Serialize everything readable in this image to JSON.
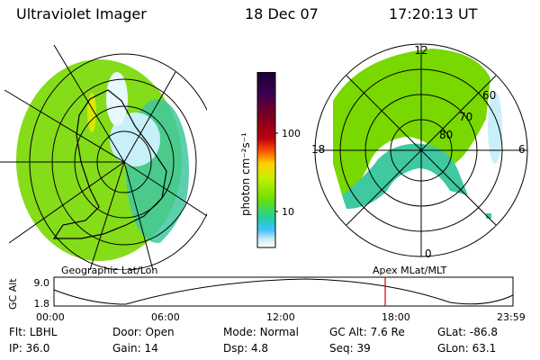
{
  "header": {
    "instrument": "Ultraviolet Imager",
    "date": "18 Dec 07",
    "time": "17:20:13 UT"
  },
  "colorbar": {
    "unit_label": "photon cm⁻²s⁻¹",
    "ticks": [
      "100",
      "10"
    ],
    "colors": [
      "#1a0030",
      "#3a0050",
      "#7a0020",
      "#c00010",
      "#ff6000",
      "#ffd000",
      "#c8f000",
      "#70e000",
      "#20d0a0",
      "#40c0ff",
      "#c8e8f8",
      "#ffffff"
    ]
  },
  "left_panel": {
    "caption": "Geographic Lat/Lon",
    "aurora_color": "#78d800",
    "aurora_color_edge": "#40c8a0"
  },
  "right_panel": {
    "caption": "Apex MLat/MLT",
    "mlt_labels": {
      "top": "12",
      "left": "18",
      "right": "6",
      "bottom": "0"
    },
    "mlat_labels": [
      "60",
      "70",
      "80"
    ]
  },
  "altitude_plot": {
    "ylabel": "GC Alt",
    "yticks": [
      "9.0",
      "1.8"
    ],
    "xticks": [
      "00:00",
      "06:00",
      "12:00",
      "18:00",
      "23:59"
    ],
    "marker_color": "#d00000"
  },
  "info": {
    "row1": [
      {
        "k": "Flt:",
        "v": "LBHL"
      },
      {
        "k": "Door:",
        "v": "Open"
      },
      {
        "k": "Mode:",
        "v": "Normal"
      },
      {
        "k": "GC Alt:",
        "v": "7.6 Re"
      },
      {
        "k": "GLat:",
        "v": "-86.8"
      }
    ],
    "row2": [
      {
        "k": "IP:",
        "v": "36.0"
      },
      {
        "k": "Gain:",
        "v": "14"
      },
      {
        "k": "Dsp:",
        "v": "4.8"
      },
      {
        "k": "Seq:",
        "v": "39"
      },
      {
        "k": "GLon:",
        "v": "63.1"
      }
    ]
  }
}
